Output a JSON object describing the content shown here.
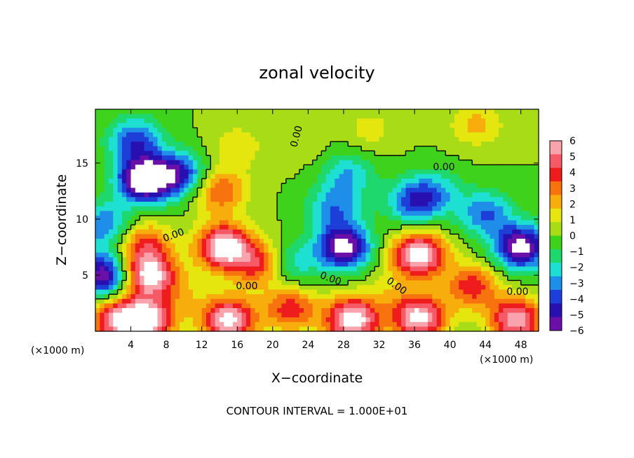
{
  "chart_data": {
    "type": "heatmap",
    "title": "zonal velocity",
    "xlabel": "X−coordinate",
    "ylabel": "Z−coordinate",
    "x_unit": "(×1000 m)",
    "y_unit": "(×1000 m)",
    "xlim": [
      0,
      50
    ],
    "ylim": [
      0,
      19.8
    ],
    "x_ticks": [
      4,
      8,
      12,
      16,
      20,
      24,
      28,
      32,
      36,
      40,
      44,
      48
    ],
    "y_ticks": [
      5,
      10,
      15
    ],
    "colorbar": {
      "ticks": [
        6,
        5,
        4,
        3,
        2,
        1,
        0,
        -1,
        -2,
        -3,
        -4,
        -5,
        -6
      ],
      "range": [
        -6,
        6
      ],
      "colors": [
        "#f9a3ad",
        "#f55a66",
        "#ee1c1c",
        "#f7730e",
        "#f7ad0c",
        "#e5e60f",
        "#a8dc16",
        "#3fd21c",
        "#1ed86e",
        "#1ee0d2",
        "#1e8ee8",
        "#1e3ed8",
        "#2810b0",
        "#6a10a8"
      ],
      "above_max_color": "#ffffff",
      "below_min_color": "#ffffff"
    },
    "contour_labels": [
      "0.00",
      "0.00",
      "0.00",
      "0.00",
      "0.00",
      "0.00",
      "0.00"
    ],
    "contour_interval_text": "CONTOUR INTERVAL = 1.000E+01",
    "features": [
      {
        "x": 2.5,
        "z": 1.0,
        "u": 5.5
      },
      {
        "x": 6.0,
        "z": 5.0,
        "u": 6.5
      },
      {
        "x": 5.5,
        "z": 7.8,
        "u": 3.5
      },
      {
        "x": 14.5,
        "z": 7.5,
        "u": 7.0
      },
      {
        "x": 18.5,
        "z": 6.0,
        "u": 4.0
      },
      {
        "x": 14.0,
        "z": 12.5,
        "u": 3.5
      },
      {
        "x": 6.0,
        "z": 1.0,
        "u": 6.0
      },
      {
        "x": 15.0,
        "z": 1.0,
        "u": 6.5
      },
      {
        "x": 22.0,
        "z": 2.0,
        "u": 4.0
      },
      {
        "x": 29.0,
        "z": 1.0,
        "u": 7.0
      },
      {
        "x": 36.5,
        "z": 6.8,
        "u": 7.0
      },
      {
        "x": 36.5,
        "z": 1.2,
        "u": 6.5
      },
      {
        "x": 42.5,
        "z": 4.0,
        "u": 4.0
      },
      {
        "x": 47.5,
        "z": 1.0,
        "u": 6.0
      },
      {
        "x": 28.0,
        "z": 7.5,
        "u": -6.5
      },
      {
        "x": 27.0,
        "z": 11.0,
        "u": -3.0
      },
      {
        "x": 22.0,
        "z": 6.0,
        "u": -2.5
      },
      {
        "x": 36.0,
        "z": 11.5,
        "u": -4.0
      },
      {
        "x": 48.0,
        "z": 7.5,
        "u": -6.5
      },
      {
        "x": 44.0,
        "z": 10.5,
        "u": -3.5
      },
      {
        "x": 5.5,
        "z": 13.5,
        "u": -7.5
      },
      {
        "x": 4.5,
        "z": 17.0,
        "u": -4.0
      },
      {
        "x": 9.5,
        "z": 14.0,
        "u": -4.5
      },
      {
        "x": 1.0,
        "z": 5.0,
        "u": -6.0
      },
      {
        "x": 1.0,
        "z": 9.5,
        "u": -3.5
      },
      {
        "x": 28.5,
        "z": 14.0,
        "u": -2.5
      },
      {
        "x": 38.5,
        "z": 12.5,
        "u": -2.0
      },
      {
        "x": 23.5,
        "z": 16.5,
        "u": 0.5
      },
      {
        "x": 43.0,
        "z": 18.5,
        "u": 2.0
      },
      {
        "x": 31.0,
        "z": 18.0,
        "u": 1.2
      },
      {
        "x": 16.0,
        "z": 16.5,
        "u": 1.5
      },
      {
        "x": 33.0,
        "z": 3.5,
        "u": 1.0
      },
      {
        "x": 10.0,
        "z": 3.5,
        "u": 1.2
      }
    ]
  }
}
